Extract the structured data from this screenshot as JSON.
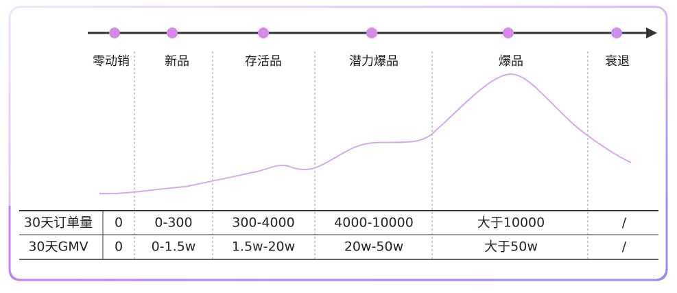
{
  "stages": [
    "零动销",
    "新品",
    "存活品",
    "潜力爆品",
    "爆品",
    "衰退"
  ],
  "table": {
    "rows": [
      [
        "30天订单量",
        "0",
        "0-300",
        "300-4000",
        "4000-10000",
        "大于10000",
        "/"
      ],
      [
        "30天GMV",
        "0",
        "0-1.5w",
        "1.5w-20w",
        "20w-50w",
        "大于50w",
        "/"
      ]
    ]
  }
}
